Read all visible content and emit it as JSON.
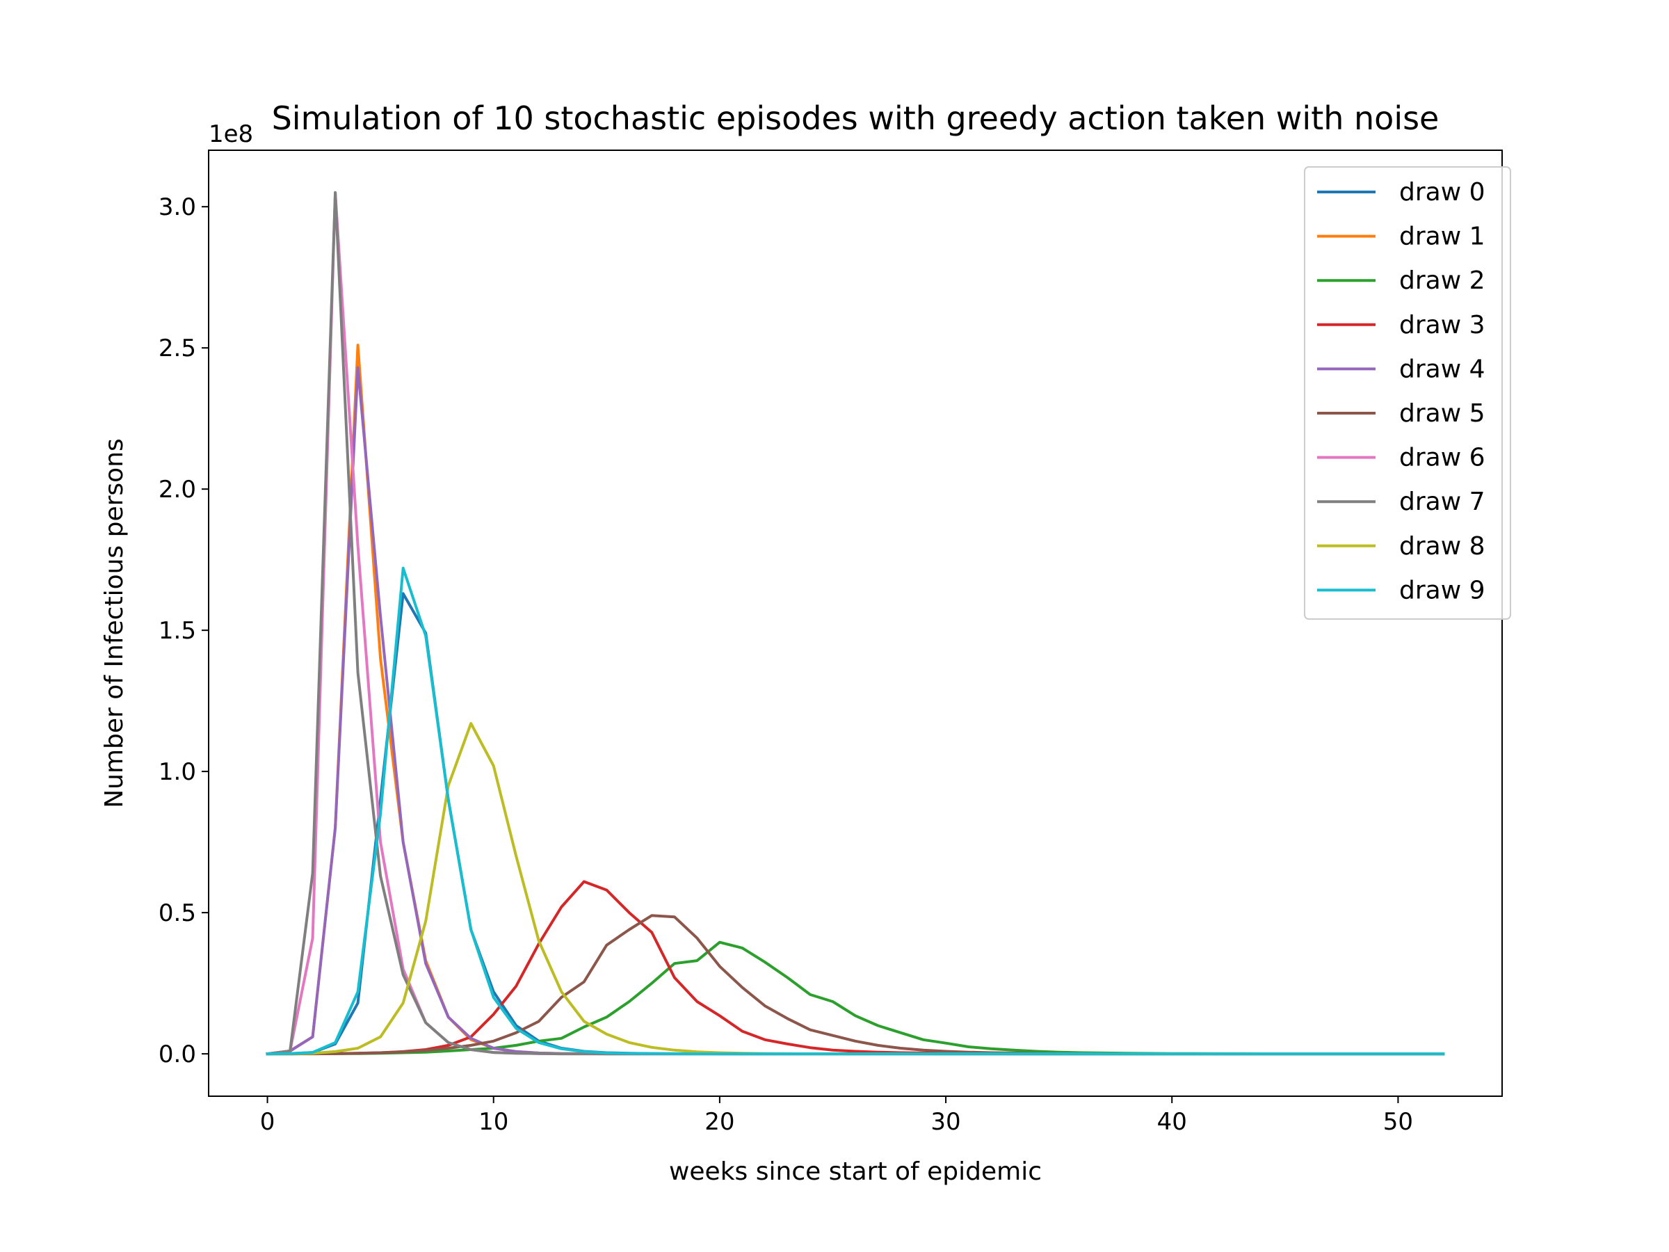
{
  "chart_data": {
    "type": "line",
    "title": "Simulation of 10 stochastic episodes with greedy action taken with noise",
    "xlabel": "weeks since start of epidemic",
    "ylabel": "Number of Infectious persons",
    "y_offset_label": "1e8",
    "xlim": [
      -2.6,
      54.6
    ],
    "ylim": [
      -0.15,
      3.2
    ],
    "y_scale": 100000000,
    "x_ticks": [
      0,
      10,
      20,
      30,
      40,
      50
    ],
    "x_tick_labels": [
      "0",
      "10",
      "20",
      "30",
      "40",
      "50"
    ],
    "y_ticks": [
      0.0,
      0.5,
      1.0,
      1.5,
      2.0,
      2.5,
      3.0
    ],
    "y_tick_labels": [
      "0.0",
      "0.5",
      "1.0",
      "1.5",
      "2.0",
      "2.5",
      "3.0"
    ],
    "grid": false,
    "legend_position": "top-right",
    "x": [
      0,
      1,
      2,
      3,
      4,
      5,
      6,
      7,
      8,
      9,
      10,
      11,
      12,
      13,
      14,
      15,
      16,
      17,
      18,
      19,
      20,
      21,
      22,
      23,
      24,
      25,
      26,
      27,
      28,
      29,
      30,
      31,
      32,
      33,
      34,
      35,
      36,
      37,
      38,
      39,
      40,
      41,
      42,
      43,
      44,
      45,
      46,
      47,
      48,
      49,
      50,
      51,
      52
    ],
    "series": [
      {
        "name": "draw 0",
        "color": "#1f77b4",
        "values": [
          0,
          0.001,
          0.005,
          0.035,
          0.18,
          0.9,
          1.63,
          1.49,
          0.9,
          0.44,
          0.22,
          0.1,
          0.045,
          0.02,
          0.009,
          0.004,
          0.002,
          0.001,
          0.0005,
          0.0002,
          0,
          0,
          0,
          0,
          0,
          0,
          0,
          0,
          0,
          0,
          0,
          0,
          0,
          0,
          0,
          0,
          0,
          0,
          0,
          0,
          0,
          0,
          0,
          0,
          0,
          0,
          0,
          0,
          0,
          0,
          0,
          0,
          0
        ]
      },
      {
        "name": "draw 1",
        "color": "#ff7f0e",
        "values": [
          0,
          0.01,
          0.06,
          0.8,
          2.51,
          1.4,
          0.75,
          0.33,
          0.13,
          0.05,
          0.02,
          0.008,
          0.003,
          0.001,
          0.0005,
          0,
          0,
          0,
          0,
          0,
          0,
          0,
          0,
          0,
          0,
          0,
          0,
          0,
          0,
          0,
          0,
          0,
          0,
          0,
          0,
          0,
          0,
          0,
          0,
          0,
          0,
          0,
          0,
          0,
          0,
          0,
          0,
          0,
          0,
          0,
          0,
          0,
          0
        ]
      },
      {
        "name": "draw 2",
        "color": "#2ca02c",
        "values": [
          0,
          0,
          0,
          0.0005,
          0.001,
          0.002,
          0.004,
          0.006,
          0.01,
          0.015,
          0.02,
          0.03,
          0.045,
          0.055,
          0.095,
          0.13,
          0.185,
          0.25,
          0.32,
          0.33,
          0.395,
          0.375,
          0.325,
          0.27,
          0.21,
          0.185,
          0.135,
          0.1,
          0.075,
          0.05,
          0.038,
          0.025,
          0.018,
          0.013,
          0.009,
          0.006,
          0.004,
          0.003,
          0.002,
          0.0015,
          0.001,
          0.0008,
          0.0006,
          0.0004,
          0.0003,
          0.0002,
          0.0001,
          0,
          0,
          0,
          0,
          0,
          0
        ]
      },
      {
        "name": "draw 3",
        "color": "#d62728",
        "values": [
          0,
          0,
          0.0005,
          0.001,
          0.002,
          0.004,
          0.008,
          0.015,
          0.03,
          0.06,
          0.14,
          0.24,
          0.39,
          0.52,
          0.61,
          0.58,
          0.5,
          0.43,
          0.27,
          0.185,
          0.135,
          0.08,
          0.05,
          0.035,
          0.022,
          0.013,
          0.009,
          0.006,
          0.004,
          0.003,
          0.002,
          0.001,
          0.0005,
          0,
          0,
          0,
          0,
          0,
          0,
          0,
          0,
          0,
          0,
          0,
          0,
          0,
          0,
          0,
          0,
          0,
          0,
          0,
          0
        ]
      },
      {
        "name": "draw 4",
        "color": "#9467bd",
        "values": [
          0,
          0.01,
          0.06,
          0.8,
          2.43,
          1.55,
          0.75,
          0.32,
          0.13,
          0.055,
          0.02,
          0.008,
          0.003,
          0.001,
          0.0005,
          0,
          0,
          0,
          0,
          0,
          0,
          0,
          0,
          0,
          0,
          0,
          0,
          0,
          0,
          0,
          0,
          0,
          0,
          0,
          0,
          0,
          0,
          0,
          0,
          0,
          0,
          0,
          0,
          0,
          0,
          0,
          0,
          0,
          0,
          0,
          0,
          0,
          0
        ]
      },
      {
        "name": "draw 5",
        "color": "#8c564b",
        "values": [
          0,
          0,
          0.0005,
          0.001,
          0.002,
          0.004,
          0.007,
          0.012,
          0.02,
          0.03,
          0.045,
          0.075,
          0.115,
          0.2,
          0.255,
          0.385,
          0.44,
          0.49,
          0.485,
          0.41,
          0.31,
          0.235,
          0.17,
          0.125,
          0.085,
          0.065,
          0.045,
          0.03,
          0.02,
          0.013,
          0.009,
          0.006,
          0.004,
          0.003,
          0.002,
          0.001,
          0.0005,
          0,
          0,
          0,
          0,
          0,
          0,
          0,
          0,
          0,
          0,
          0,
          0,
          0,
          0,
          0,
          0
        ]
      },
      {
        "name": "draw 6",
        "color": "#e377c2",
        "values": [
          0,
          0.01,
          0.41,
          3.05,
          1.8,
          0.75,
          0.3,
          0.11,
          0.04,
          0.015,
          0.005,
          0.002,
          0.001,
          0,
          0,
          0,
          0,
          0,
          0,
          0,
          0,
          0,
          0,
          0,
          0,
          0,
          0,
          0,
          0,
          0,
          0,
          0,
          0,
          0,
          0,
          0,
          0,
          0,
          0,
          0,
          0,
          0,
          0,
          0,
          0,
          0,
          0,
          0,
          0,
          0,
          0,
          0,
          0
        ]
      },
      {
        "name": "draw 7",
        "color": "#7f7f7f",
        "values": [
          0,
          0.01,
          0.64,
          3.05,
          1.35,
          0.63,
          0.28,
          0.11,
          0.04,
          0.015,
          0.005,
          0.002,
          0.001,
          0,
          0,
          0,
          0,
          0,
          0,
          0,
          0,
          0,
          0,
          0,
          0,
          0,
          0,
          0,
          0,
          0,
          0,
          0,
          0,
          0,
          0,
          0,
          0,
          0,
          0,
          0,
          0,
          0,
          0,
          0,
          0,
          0,
          0,
          0,
          0,
          0,
          0,
          0,
          0
        ]
      },
      {
        "name": "draw 8",
        "color": "#bcbd22",
        "values": [
          0,
          0.0005,
          0.002,
          0.008,
          0.02,
          0.06,
          0.18,
          0.47,
          0.95,
          1.17,
          1.02,
          0.7,
          0.4,
          0.22,
          0.115,
          0.07,
          0.04,
          0.023,
          0.013,
          0.007,
          0.004,
          0.002,
          0.001,
          0.0005,
          0,
          0,
          0,
          0,
          0,
          0,
          0,
          0,
          0,
          0,
          0,
          0,
          0,
          0,
          0,
          0,
          0,
          0,
          0,
          0,
          0,
          0,
          0,
          0,
          0,
          0,
          0,
          0,
          0
        ]
      },
      {
        "name": "draw 9",
        "color": "#17becf",
        "values": [
          0,
          0.001,
          0.005,
          0.04,
          0.22,
          0.85,
          1.72,
          1.48,
          0.9,
          0.44,
          0.2,
          0.09,
          0.04,
          0.018,
          0.008,
          0.003,
          0.0015,
          0.0007,
          0.0003,
          0,
          0,
          0,
          0,
          0,
          0,
          0,
          0,
          0,
          0,
          0,
          0,
          0,
          0,
          0,
          0,
          0,
          0,
          0,
          0,
          0,
          0,
          0,
          0,
          0,
          0,
          0,
          0,
          0,
          0,
          0,
          0,
          0,
          0
        ]
      }
    ]
  }
}
